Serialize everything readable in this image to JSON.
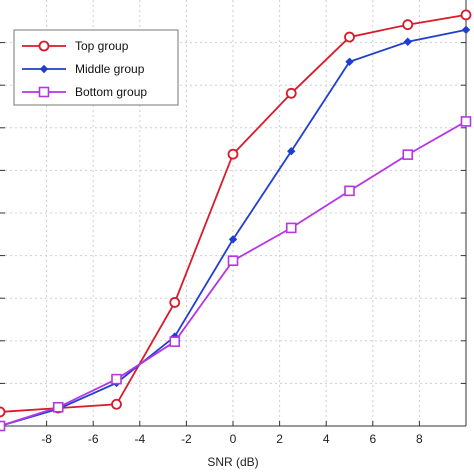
{
  "chart_data": {
    "type": "line",
    "xlabel": "SNR (dB)",
    "ylabel": "",
    "title": "",
    "xlim": [
      -10,
      10
    ],
    "ylim": [
      0,
      1
    ],
    "grid": true,
    "legend_position": "top-left",
    "x_ticks": [
      -8,
      -6,
      -4,
      -2,
      0,
      2,
      4,
      6,
      8
    ],
    "x_tick_labels": [
      "-8",
      "-6",
      "-4",
      "-2",
      "0",
      "2",
      "4",
      "6",
      "8"
    ],
    "x": [
      -10,
      -7.5,
      -5,
      -2.5,
      0,
      2.5,
      5,
      7.5,
      10
    ],
    "series": [
      {
        "name": "Top group",
        "color": "#d91a2a",
        "marker": "circle",
        "values": [
          0.033,
          0.042,
          0.051,
          0.29,
          0.638,
          0.781,
          0.913,
          0.942,
          0.965
        ]
      },
      {
        "name": "Middle group",
        "color": "#1f3fd1",
        "marker": "diamond",
        "values": [
          0.0,
          0.04,
          0.101,
          0.21,
          0.438,
          0.645,
          0.855,
          0.902,
          0.93
        ]
      },
      {
        "name": "Bottom group",
        "color": "#b536e6",
        "marker": "square",
        "values": [
          0.0,
          0.044,
          0.11,
          0.198,
          0.388,
          0.465,
          0.552,
          0.637,
          0.715
        ]
      }
    ]
  }
}
